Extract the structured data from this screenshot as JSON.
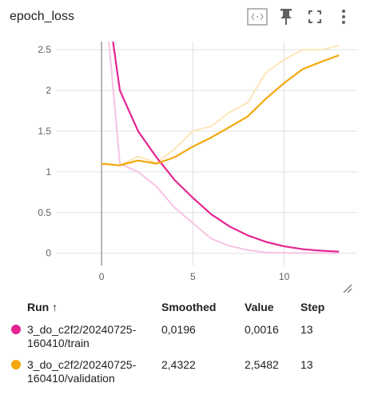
{
  "title": "epoch_loss",
  "toolbar": {
    "icons": [
      "data-selection-icon",
      "pin-icon",
      "fullscreen-icon",
      "more-vert-icon"
    ]
  },
  "colors": {
    "train": "#e52592",
    "train_raw": "#f7c4e2",
    "validation": "#f4a80c",
    "validation_raw": "#fce6b8",
    "grid": "#e0e0e0",
    "zero_axis": "#9e9e9e"
  },
  "chart_data": {
    "type": "line",
    "title": "epoch_loss",
    "xlabel": "",
    "ylabel": "",
    "xlim": [
      -2.5,
      14
    ],
    "ylim": [
      -0.15,
      2.6
    ],
    "x_ticks": [
      0,
      5,
      10
    ],
    "y_ticks": [
      0,
      0.5,
      1,
      1.5,
      2,
      2.5
    ],
    "y_tick_labels": [
      "0",
      "0.5",
      "1",
      "1.5",
      "2",
      "2.5"
    ],
    "grid": true,
    "series": [
      {
        "name": "3_do_c2f2/20240725-160410/train",
        "kind": "smoothed",
        "x": [
          0,
          1,
          2,
          3,
          4,
          5,
          6,
          7,
          8,
          9,
          10,
          11,
          12,
          13
        ],
        "y": [
          3.6,
          2.0,
          1.5,
          1.18,
          0.9,
          0.68,
          0.48,
          0.33,
          0.22,
          0.14,
          0.085,
          0.05,
          0.032,
          0.0196
        ]
      },
      {
        "name": "3_do_c2f2/20240725-160410/train",
        "kind": "raw",
        "x": [
          0,
          1,
          2,
          3,
          4,
          5,
          6,
          7,
          8,
          9,
          10,
          11,
          12,
          13
        ],
        "y": [
          3.6,
          1.1,
          1.0,
          0.82,
          0.56,
          0.37,
          0.18,
          0.09,
          0.04,
          0.01,
          0.005,
          0.003,
          0.002,
          0.0016
        ]
      },
      {
        "name": "3_do_c2f2/20240725-160410/validation",
        "kind": "smoothed",
        "x": [
          0,
          1,
          2,
          3,
          4,
          5,
          6,
          7,
          8,
          9,
          10,
          11,
          12,
          13
        ],
        "y": [
          1.1,
          1.08,
          1.14,
          1.1,
          1.18,
          1.31,
          1.42,
          1.55,
          1.68,
          1.9,
          2.09,
          2.26,
          2.35,
          2.4322
        ]
      },
      {
        "name": "3_do_c2f2/20240725-160410/validation",
        "kind": "raw",
        "x": [
          0,
          1,
          2,
          3,
          4,
          5,
          6,
          7,
          8,
          9,
          10,
          11,
          12,
          13
        ],
        "y": [
          1.1,
          1.08,
          1.19,
          1.11,
          1.28,
          1.5,
          1.56,
          1.73,
          1.85,
          2.22,
          2.38,
          2.5,
          2.5,
          2.5482
        ]
      }
    ]
  },
  "table": {
    "headers": [
      "Run ↑",
      "Smoothed",
      "Value",
      "Step"
    ],
    "rows": [
      {
        "color": "#e52592",
        "name_line1": "3_do_c2f2/20240725-",
        "name_line2": "160410/train",
        "smoothed": "0,0196",
        "value": "0,0016",
        "step": "13"
      },
      {
        "color": "#f4a80c",
        "name_line1": "3_do_c2f2/20240725-",
        "name_line2": "160410/validation",
        "smoothed": "2,4322",
        "value": "2,5482",
        "step": "13"
      }
    ]
  }
}
